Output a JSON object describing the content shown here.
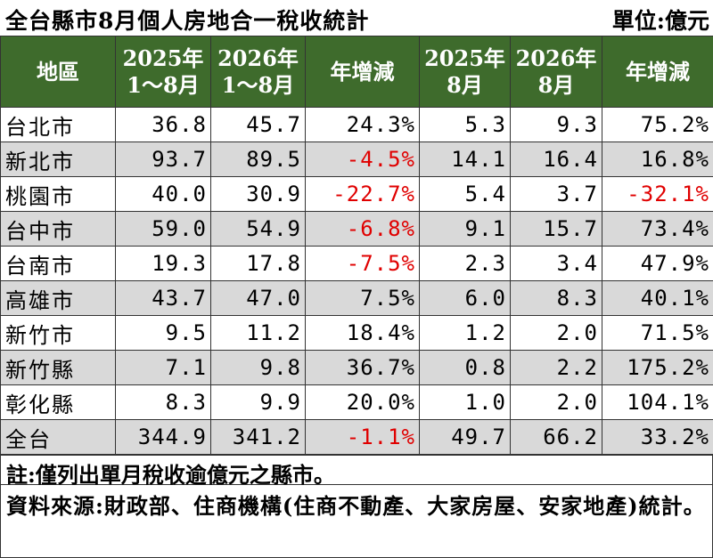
{
  "title": "全台縣市8月個人房地合一稅收統計",
  "unit": "單位:億元",
  "headers": {
    "region": "地區",
    "c1a": "2025年",
    "c1b": "1～8月",
    "c2a": "2026年",
    "c2b": "1～8月",
    "c3": "年增減",
    "c4a": "2025年",
    "c4b": "8月",
    "c5a": "2026年",
    "c5b": "8月",
    "c6": "年增減"
  },
  "rows": [
    {
      "name": "台北市",
      "v1": "36.8",
      "v2": "45.7",
      "v3": "24.3%",
      "v4": "5.3",
      "v5": "9.3",
      "v6": "75.2%"
    },
    {
      "name": "新北市",
      "v1": "93.7",
      "v2": "89.5",
      "v3": "-4.5%",
      "v4": "14.1",
      "v5": "16.4",
      "v6": "16.8%"
    },
    {
      "name": "桃園市",
      "v1": "40.0",
      "v2": "30.9",
      "v3": "-22.7%",
      "v4": "5.4",
      "v5": "3.7",
      "v6": "-32.1%"
    },
    {
      "name": "台中市",
      "v1": "59.0",
      "v2": "54.9",
      "v3": "-6.8%",
      "v4": "9.1",
      "v5": "15.7",
      "v6": "73.4%"
    },
    {
      "name": "台南市",
      "v1": "19.3",
      "v2": "17.8",
      "v3": "-7.5%",
      "v4": "2.3",
      "v5": "3.4",
      "v6": "47.9%"
    },
    {
      "name": "高雄市",
      "v1": "43.7",
      "v2": "47.0",
      "v3": "7.5%",
      "v4": "6.0",
      "v5": "8.3",
      "v6": "40.1%"
    },
    {
      "name": "新竹市",
      "v1": "9.5",
      "v2": "11.2",
      "v3": "18.4%",
      "v4": "1.2",
      "v5": "2.0",
      "v6": "71.5%"
    },
    {
      "name": "新竹縣",
      "v1": "7.1",
      "v2": "9.8",
      "v3": "36.7%",
      "v4": "0.8",
      "v5": "2.2",
      "v6": "175.2%"
    },
    {
      "name": "彰化縣",
      "v1": "8.3",
      "v2": "9.9",
      "v3": "20.0%",
      "v4": "1.0",
      "v5": "2.0",
      "v6": "104.1%"
    },
    {
      "name": "全台",
      "v1": "344.9",
      "v2": "341.2",
      "v3": "-1.1%",
      "v4": "49.7",
      "v5": "66.2",
      "v6": "33.2%"
    }
  ],
  "note": "註:僅列出單月稅收逾億元之縣市。",
  "source": "資料來源:財政部、住商機構(住商不動產、大家房屋、安家地產)統計。",
  "colors": {
    "header_bg": "#3e6b2c",
    "negative": "#e00000",
    "alt_row": "#d9d9d9"
  }
}
